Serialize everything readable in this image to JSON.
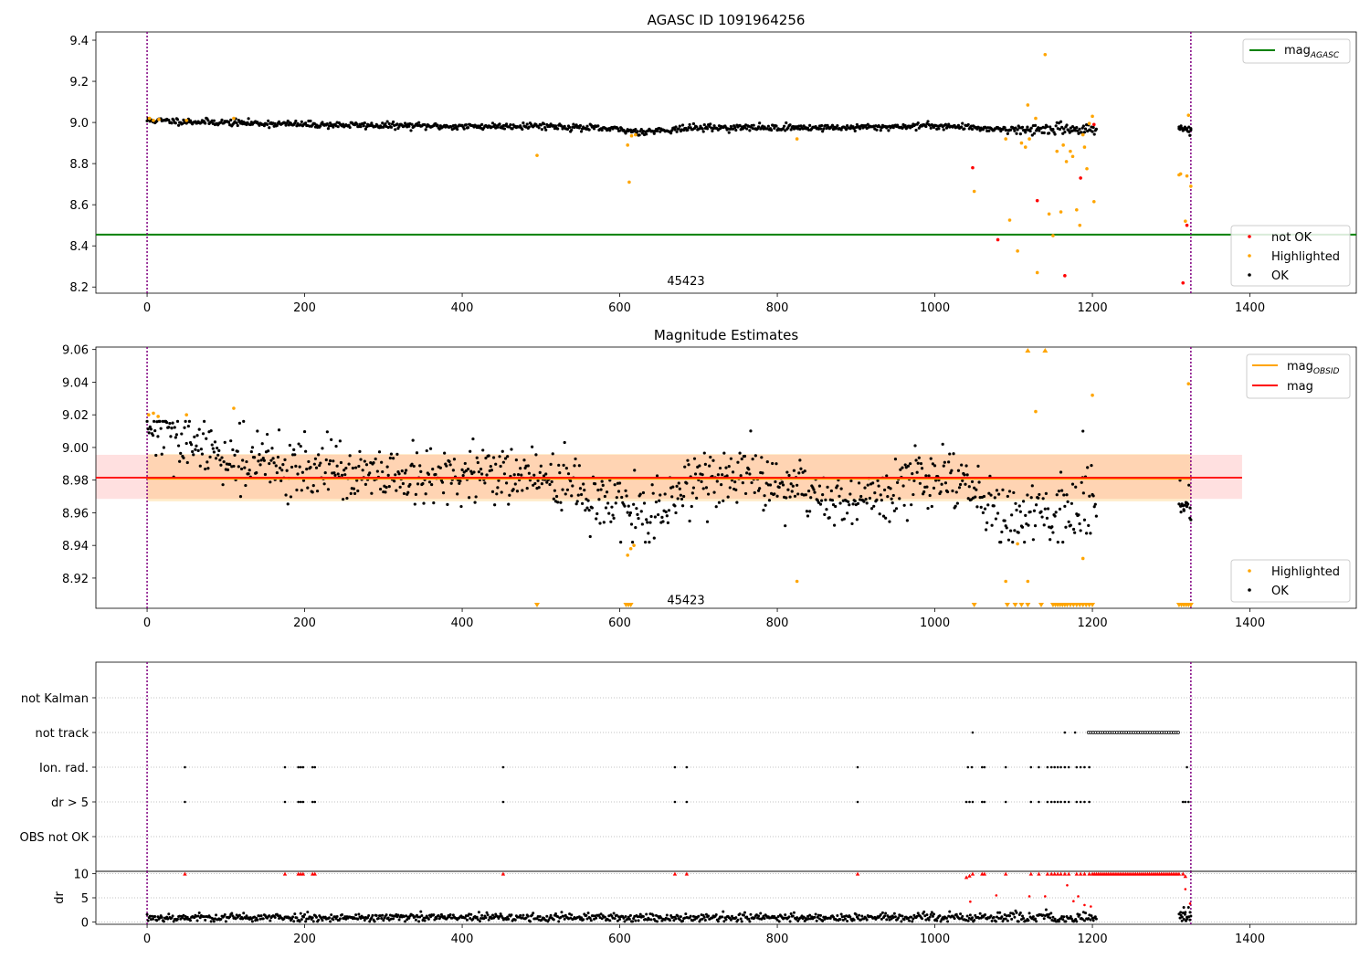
{
  "chart_data": [
    {
      "type": "scatter",
      "title": "AGASC ID 1091964256",
      "xlim": [
        -65,
        1535
      ],
      "ylim": [
        8.17,
        9.44
      ],
      "xticks": [
        0,
        200,
        400,
        600,
        800,
        1000,
        1200,
        1400
      ],
      "yticks": [
        8.2,
        8.4,
        8.6,
        8.8,
        9.0,
        9.2,
        9.4
      ],
      "ytick_labels": [
        "8.2",
        "8.4",
        "8.6",
        "8.8",
        "9.0",
        "9.2",
        "9.4"
      ],
      "annotation": "45423",
      "annotation_pos": [
        660,
        8.2
      ],
      "vlines": [
        0,
        1325
      ],
      "hlines": [
        {
          "name": "mag",
          "sub": "AGASC",
          "y": 8.455,
          "color": "#008000"
        }
      ],
      "legend_top": {
        "placement": "upper-right",
        "entries": [
          {
            "name": "mag",
            "sub": "AGASC",
            "color": "#008000"
          }
        ]
      },
      "legend_bottom": {
        "placement": "lower-right",
        "entries": [
          {
            "name": "not OK",
            "color": "#ff0000"
          },
          {
            "name": "Highlighted",
            "color": "#ffa500"
          },
          {
            "name": "OK",
            "color": "#000000"
          }
        ]
      },
      "trend": {
        "x_range": [
          0,
          1325
        ],
        "knots": [
          [
            0,
            9.01
          ],
          [
            100,
            9.0
          ],
          [
            200,
            8.99
          ],
          [
            300,
            8.985
          ],
          [
            400,
            8.98
          ],
          [
            500,
            8.985
          ],
          [
            600,
            8.965
          ],
          [
            625,
            8.955
          ],
          [
            700,
            8.975
          ],
          [
            800,
            8.975
          ],
          [
            900,
            8.975
          ],
          [
            1000,
            8.985
          ],
          [
            1100,
            8.965
          ],
          [
            1200,
            8.97
          ],
          [
            1325,
            8.965
          ]
        ],
        "noise": 0.008,
        "gap": [
          1205,
          1310
        ]
      },
      "series": [
        {
          "name": "not OK",
          "color": "#ff0000",
          "points": [
            [
              1048,
              8.78
            ],
            [
              1080,
              8.43
            ],
            [
              1130,
              8.62
            ],
            [
              1165,
              8.255
            ],
            [
              1185,
              8.73
            ],
            [
              1202,
              8.99
            ],
            [
              1315,
              8.22
            ],
            [
              1320,
              8.5
            ]
          ]
        },
        {
          "name": "Highlighted",
          "color": "#ffa500",
          "points": [
            [
              3,
              9.02
            ],
            [
              8,
              9.01
            ],
            [
              15,
              9.015
            ],
            [
              50,
              9.01
            ],
            [
              110,
              9.02
            ],
            [
              495,
              8.84
            ],
            [
              610,
              8.89
            ],
            [
              612,
              8.71
            ],
            [
              615,
              8.935
            ],
            [
              620,
              8.94
            ],
            [
              825,
              8.92
            ],
            [
              1050,
              8.665
            ],
            [
              1090,
              8.92
            ],
            [
              1095,
              8.525
            ],
            [
              1105,
              8.375
            ],
            [
              1110,
              8.9
            ],
            [
              1115,
              8.88
            ],
            [
              1118,
              9.085
            ],
            [
              1120,
              8.92
            ],
            [
              1128,
              9.02
            ],
            [
              1130,
              8.27
            ],
            [
              1140,
              9.33
            ],
            [
              1145,
              8.555
            ],
            [
              1150,
              8.45
            ],
            [
              1155,
              8.86
            ],
            [
              1160,
              8.565
            ],
            [
              1163,
              8.89
            ],
            [
              1167,
              8.81
            ],
            [
              1172,
              8.86
            ],
            [
              1175,
              8.835
            ],
            [
              1180,
              8.575
            ],
            [
              1184,
              8.5
            ],
            [
              1188,
              8.94
            ],
            [
              1190,
              8.88
            ],
            [
              1193,
              8.775
            ],
            [
              1196,
              8.995
            ],
            [
              1200,
              9.03
            ],
            [
              1202,
              8.615
            ],
            [
              1310,
              8.745
            ],
            [
              1312,
              8.75
            ],
            [
              1318,
              8.52
            ],
            [
              1320,
              8.74
            ],
            [
              1322,
              9.035
            ],
            [
              1325,
              8.69
            ]
          ]
        }
      ]
    },
    {
      "type": "scatter",
      "title": "Magnitude Estimates",
      "xlim": [
        -65,
        1535
      ],
      "ylim": [
        8.9015,
        9.0615
      ],
      "xticks": [
        0,
        200,
        400,
        600,
        800,
        1000,
        1200,
        1400
      ],
      "yticks": [
        8.92,
        8.94,
        8.96,
        8.98,
        9.0,
        9.02,
        9.04,
        9.06
      ],
      "ytick_labels": [
        "8.92",
        "8.94",
        "8.96",
        "8.98",
        "9.00",
        "9.02",
        "9.04",
        "9.06"
      ],
      "annotation": "45423",
      "annotation_pos": [
        660,
        8.903
      ],
      "vlines": [
        0,
        1325
      ],
      "mag": {
        "name": "mag",
        "y": 8.9815,
        "band": [
          8.9685,
          8.9955
        ],
        "color": "#ff0000",
        "x_range": [
          -65,
          1390
        ]
      },
      "mag_obsid": {
        "name": "mag",
        "sub": "OBSID",
        "y": 8.981,
        "band": [
          8.967,
          8.996
        ],
        "color": "#ffa500",
        "x_range": [
          0,
          1325
        ]
      },
      "legend_top": {
        "placement": "upper-right",
        "entries": [
          {
            "name": "mag",
            "sub": "OBSID",
            "color": "#ffa500"
          },
          {
            "name": "mag",
            "color": "#ff0000"
          }
        ]
      },
      "legend_bottom": {
        "placement": "lower-right",
        "entries": [
          {
            "name": "Highlighted",
            "color": "#ffa500"
          },
          {
            "name": "OK",
            "color": "#000000"
          }
        ]
      },
      "trend": {
        "x_range": [
          0,
          1325
        ],
        "knots": [
          [
            0,
            9.012
          ],
          [
            60,
            9.0
          ],
          [
            150,
            8.99
          ],
          [
            250,
            8.985
          ],
          [
            300,
            8.98
          ],
          [
            400,
            8.982
          ],
          [
            450,
            8.985
          ],
          [
            520,
            8.98
          ],
          [
            560,
            8.97
          ],
          [
            610,
            8.96
          ],
          [
            625,
            8.955
          ],
          [
            700,
            8.982
          ],
          [
            800,
            8.978
          ],
          [
            860,
            8.968
          ],
          [
            940,
            8.97
          ],
          [
            1000,
            8.985
          ],
          [
            1050,
            8.975
          ],
          [
            1100,
            8.955
          ],
          [
            1150,
            8.96
          ],
          [
            1200,
            8.97
          ],
          [
            1325,
            8.965
          ]
        ],
        "noise": 0.009,
        "gap": [
          1205,
          1310
        ]
      },
      "series": [
        {
          "name": "Highlighted",
          "color": "#ffa500",
          "points": [
            [
              2,
              9.02
            ],
            [
              8,
              9.021
            ],
            [
              14,
              9.019
            ],
            [
              50,
              9.02
            ],
            [
              110,
              9.024
            ],
            [
              610,
              8.934
            ],
            [
              614,
              8.938
            ],
            [
              618,
              8.94
            ],
            [
              1105,
              8.941
            ],
            [
              1090,
              8.918
            ],
            [
              1118,
              8.918
            ],
            [
              825,
              8.918
            ],
            [
              1128,
              9.022
            ],
            [
              1188,
              8.932
            ],
            [
              1200,
              9.032
            ],
            [
              1322,
              9.039
            ]
          ]
        }
      ],
      "offscale_high": [
        1118,
        1140
      ],
      "offscale_low": [
        495,
        608,
        611,
        614,
        1050,
        1092,
        1102,
        1110,
        1118,
        1135,
        1150,
        1153,
        1156,
        1159,
        1162,
        1165,
        1168,
        1172,
        1176,
        1180,
        1184,
        1188,
        1192,
        1196,
        1200,
        1310,
        1313,
        1316,
        1319,
        1322,
        1325
      ]
    },
    {
      "type": "scatter",
      "xlim": [
        -65,
        1535
      ],
      "categories": [
        "not Kalman",
        "not track",
        "Ion. rad.",
        "dr > 5",
        "OBS not OK"
      ],
      "vlines": [
        0,
        1325
      ],
      "flags": {
        "not track": [
          1048,
          1165,
          1178,
          {
            "range": [
              1195,
              1310
            ],
            "step": 3
          }
        ],
        "Ion. rad.": [
          48,
          175,
          192,
          195,
          198,
          210,
          213,
          452,
          670,
          685,
          902,
          1042,
          1047,
          1060,
          1063,
          1090,
          1122,
          1132,
          1143,
          1148,
          1152,
          1156,
          1160,
          1165,
          1170,
          1180,
          1185,
          1190,
          1196,
          1320
        ],
        "dr > 5": [
          48,
          175,
          192,
          195,
          198,
          210,
          213,
          452,
          670,
          685,
          902,
          1040,
          1044,
          1048,
          1060,
          1063,
          1090,
          1122,
          1132,
          1143,
          1148,
          1152,
          1156,
          1160,
          1165,
          1170,
          1180,
          1185,
          1190,
          1196,
          1315,
          1318,
          1322
        ]
      }
    },
    {
      "type": "scatter",
      "ylabel": "dr",
      "xlim": [
        -65,
        1535
      ],
      "ylim": [
        -0.5,
        10.5
      ],
      "xticks": [
        0,
        200,
        400,
        600,
        800,
        1000,
        1200,
        1400
      ],
      "yticks": [
        0,
        5,
        10
      ],
      "ytick_labels": [
        "0",
        "5",
        "10"
      ],
      "vlines": [
        0,
        1325
      ],
      "trend": {
        "x_range": [
          0,
          1325
        ],
        "base": 0.9,
        "noise": 0.45,
        "gap": [
          1205,
          1310
        ]
      },
      "series": [
        {
          "name": "dr > 5",
          "color": "#ff0000",
          "points": [
            [
              48,
              10
            ],
            [
              175,
              10
            ],
            [
              192,
              10
            ],
            [
              195,
              10
            ],
            [
              198,
              10
            ],
            [
              210,
              10
            ],
            [
              213,
              10
            ],
            [
              452,
              10
            ],
            [
              670,
              10
            ],
            [
              685,
              10
            ],
            [
              902,
              10
            ],
            [
              1040,
              9.3
            ],
            [
              1044,
              9.6
            ],
            [
              1048,
              10
            ],
            [
              1060,
              10
            ],
            [
              1063,
              10
            ],
            [
              1090,
              10
            ],
            [
              1122,
              10
            ],
            [
              1132,
              10
            ],
            [
              1143,
              10
            ],
            [
              1148,
              10
            ],
            [
              1152,
              10
            ],
            [
              1156,
              10
            ],
            [
              1160,
              10
            ],
            [
              1165,
              10
            ],
            [
              1170,
              10
            ],
            [
              1180,
              10
            ],
            [
              1185,
              10
            ],
            [
              1190,
              10
            ],
            [
              1196,
              10
            ],
            [
              1315,
              10
            ],
            [
              1318,
              9.5
            ],
            [
              1045,
              4.2
            ],
            [
              1078,
              5.5
            ],
            [
              1120,
              5.3
            ],
            [
              1140,
              5.3
            ],
            [
              1168,
              7.6
            ],
            [
              1176,
              4.3
            ],
            [
              1182,
              5.3
            ],
            [
              1190,
              3.5
            ],
            [
              1198,
              3.2
            ],
            [
              1318,
              6.8
            ],
            [
              1324,
              3.8
            ]
          ]
        }
      ],
      "red_band": {
        "range": [
          1200,
          1310
        ],
        "step": 2.5,
        "y": 10
      }
    }
  ]
}
